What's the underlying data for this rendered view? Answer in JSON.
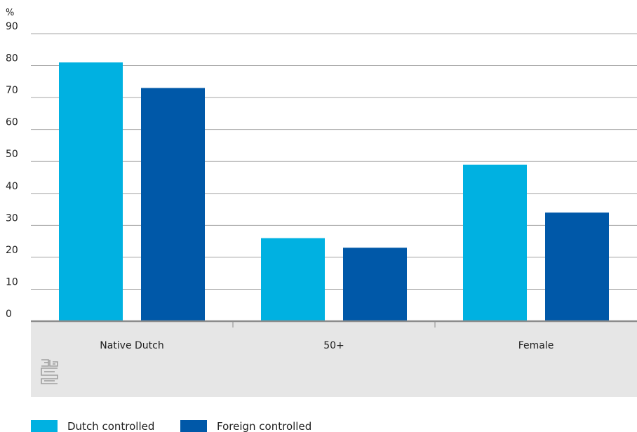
{
  "chart_data": {
    "type": "bar",
    "ylabel": "%",
    "ylim": [
      0,
      90
    ],
    "yticks": [
      0,
      10,
      20,
      30,
      40,
      50,
      60,
      70,
      80,
      90
    ],
    "categories": [
      "Native Dutch",
      "50+",
      "Female"
    ],
    "series": [
      {
        "name": "Dutch controlled",
        "color": "#00b1e1",
        "values": [
          81,
          26,
          49
        ]
      },
      {
        "name": "Foreign controlled",
        "color": "#0058a8",
        "values": [
          73,
          23,
          34
        ]
      }
    ],
    "grid": true,
    "legend_position": "bottom-left"
  },
  "colors": {
    "grid": "#a6a6a6",
    "axis": "#8c8c8c",
    "category_band": "#e6e6e6",
    "logo": "#a0a0a0"
  },
  "logo_icon": "cbs-logo-icon"
}
